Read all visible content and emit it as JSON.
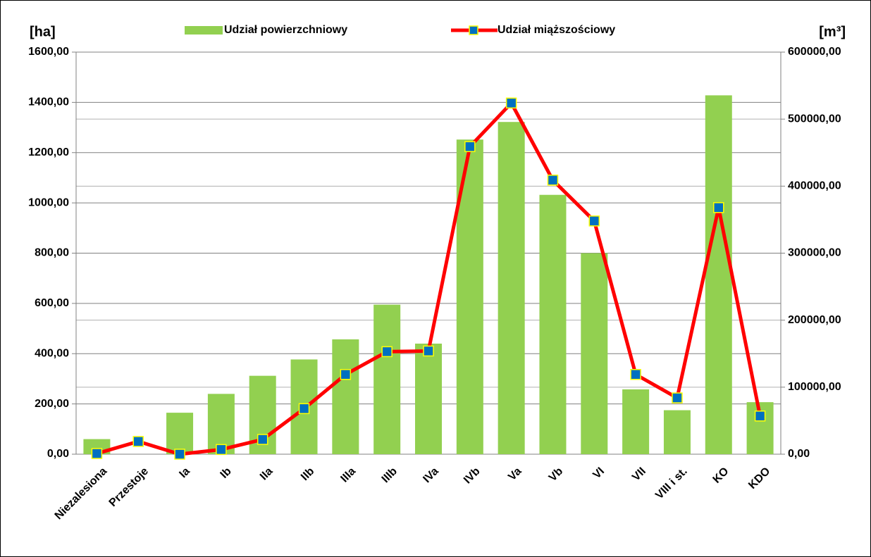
{
  "chart_data": {
    "type": "bar-line",
    "y_label": "[ha]",
    "y2_label": "[m³]",
    "categories": [
      "Niezalesiona",
      "Przestoje",
      "Ia",
      "Ib",
      "IIa",
      "IIb",
      "IIIa",
      "IIIb",
      "IVa",
      "IVb",
      "Va",
      "Vb",
      "VI",
      "VII",
      "VIII i st.",
      "KO",
      "KDO"
    ],
    "series": [
      {
        "name": "Udział powierzchniowy",
        "type": "bar",
        "color": "#92d050",
        "values": [
          60,
          0,
          165,
          240,
          312,
          377,
          457,
          595,
          440,
          1252,
          1322,
          1032,
          800,
          258,
          175,
          1428,
          207
        ]
      },
      {
        "name": "Udział miąższościowy",
        "type": "line",
        "axis": "y2",
        "color": "#ff0000",
        "marker_color": "#0070c0",
        "marker_edge": "#ffff00",
        "values": [
          1000,
          19000,
          0,
          7000,
          22000,
          68000,
          119000,
          153000,
          154000,
          459000,
          524000,
          409000,
          348000,
          119000,
          84000,
          368000,
          57000
        ]
      }
    ],
    "ylim": [
      0,
      1600
    ],
    "yticks": [
      {
        "value": 0,
        "label": "0,00"
      },
      {
        "value": 200,
        "label": "200,00"
      },
      {
        "value": 400,
        "label": "400,00"
      },
      {
        "value": 600,
        "label": "600,00"
      },
      {
        "value": 800,
        "label": "800,00"
      },
      {
        "value": 1000,
        "label": "1000,00"
      },
      {
        "value": 1200,
        "label": "1200,00"
      },
      {
        "value": 1400,
        "label": "1400,00"
      },
      {
        "value": 1600,
        "label": "1600,00"
      }
    ],
    "y2lim": [
      0,
      600000
    ],
    "y2ticks": [
      {
        "value": 0,
        "label": "0,00"
      },
      {
        "value": 100000,
        "label": "100000,00"
      },
      {
        "value": 200000,
        "label": "200000,00"
      },
      {
        "value": 300000,
        "label": "300000,00"
      },
      {
        "value": 400000,
        "label": "400000,00"
      },
      {
        "value": 500000,
        "label": "500000,00"
      },
      {
        "value": 600000,
        "label": "600000,00"
      }
    ],
    "grid": true,
    "legend": "top"
  }
}
